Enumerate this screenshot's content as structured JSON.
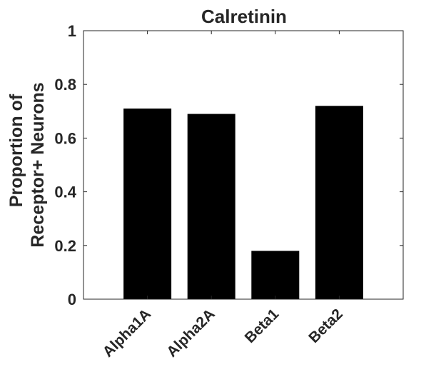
{
  "chart_data": {
    "type": "bar",
    "title": "Calretinin",
    "ylabel_lines": [
      "Proportion of",
      "Receptor+ Neurons"
    ],
    "xlabel": "",
    "categories": [
      "Alpha1A",
      "Alpha2A",
      "Beta1",
      "Beta2"
    ],
    "values": [
      0.71,
      0.69,
      0.18,
      0.72
    ],
    "ylim": [
      0,
      1
    ],
    "yticks": [
      0,
      0.2,
      0.4,
      0.6,
      0.8,
      1
    ],
    "ytick_labels": [
      "0",
      "0.2",
      "0.4",
      "0.6",
      "0.8",
      "1"
    ],
    "bar_color": "#000000",
    "grid": false,
    "legend": "none"
  }
}
